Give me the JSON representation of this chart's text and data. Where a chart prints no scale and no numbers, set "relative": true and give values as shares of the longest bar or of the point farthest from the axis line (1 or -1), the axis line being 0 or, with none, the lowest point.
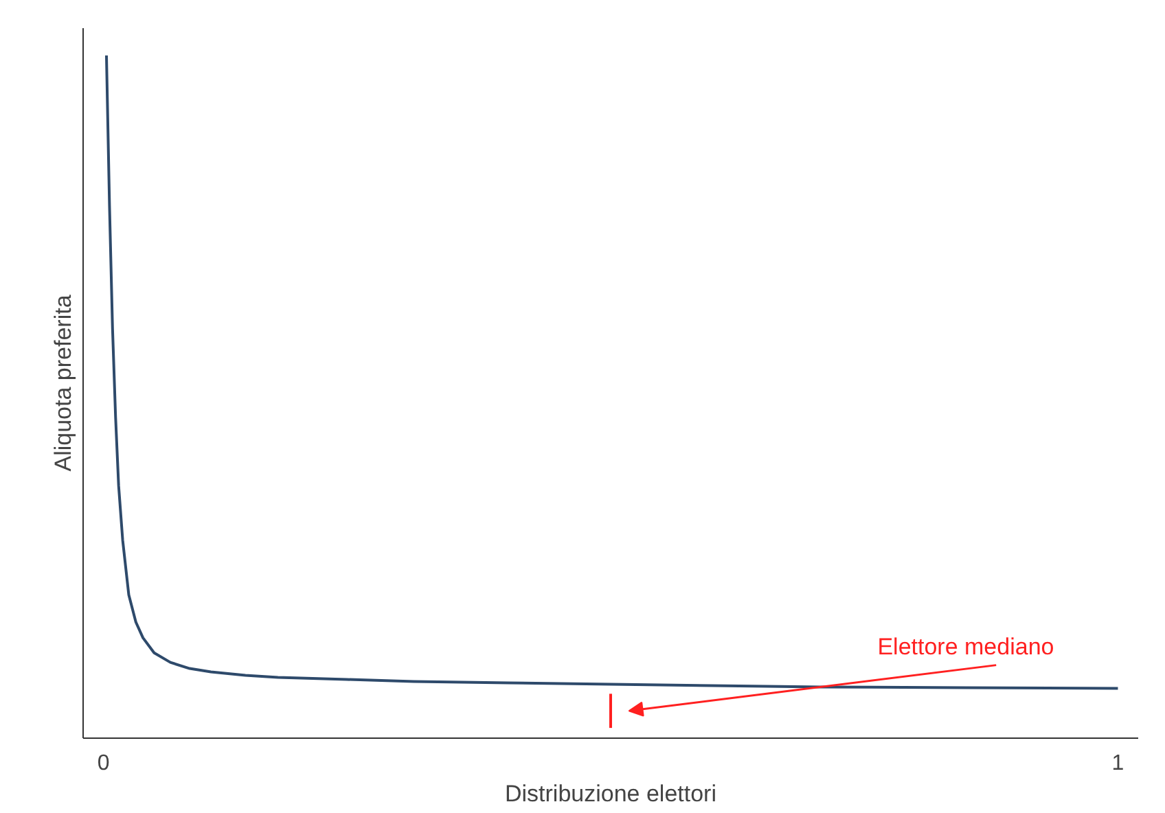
{
  "chart_data": {
    "type": "line",
    "relative": true,
    "xlabel": "Distribuzione elettori",
    "ylabel": "Aliquota preferita",
    "xlim": [
      -0.02,
      1.02
    ],
    "xticks": [
      0,
      1
    ],
    "grid": false,
    "series": [
      {
        "color": "#2e4a6b",
        "x": [
          0.003,
          0.006,
          0.009,
          0.012,
          0.015,
          0.019,
          0.025,
          0.032,
          0.039,
          0.05,
          0.066,
          0.085,
          0.106,
          0.14,
          0.172,
          0.24,
          0.306,
          0.4,
          0.5,
          0.6,
          0.707,
          0.85,
          1.0
        ],
        "values": [
          1.0,
          0.78,
          0.6,
          0.47,
          0.37,
          0.29,
          0.21,
          0.17,
          0.147,
          0.125,
          0.111,
          0.102,
          0.097,
          0.092,
          0.089,
          0.086,
          0.083,
          0.081,
          0.079,
          0.077,
          0.075,
          0.074,
          0.073
        ]
      },
      {
        "type": "line",
        "name": "Elettore mediano",
        "color": "#ff2020",
        "x": [
          0.5,
          0.5
        ],
        "values": [
          0.015,
          0.065
        ]
      }
    ]
  }
}
